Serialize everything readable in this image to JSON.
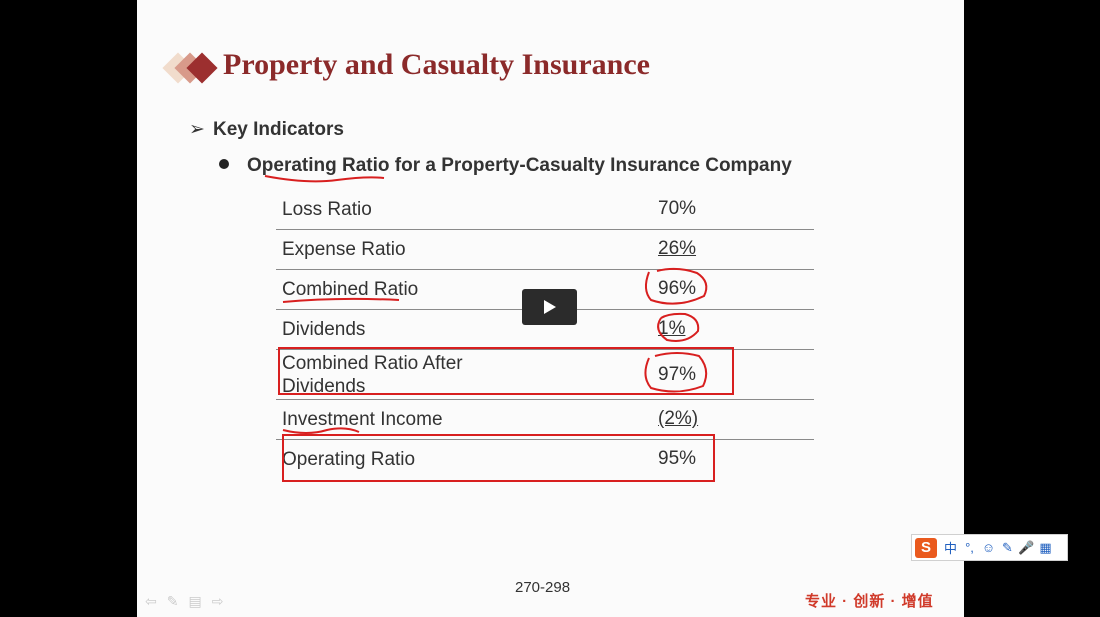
{
  "slide": {
    "title": "Property and Casualty Insurance",
    "bullet_l1": "Key Indicators",
    "bullet_l2": "Operating Ratio for a Property-Casualty Insurance Company",
    "arrow_glyph": "➢",
    "rows": [
      {
        "label": "Loss Ratio",
        "value": "70%"
      },
      {
        "label": "Expense Ratio",
        "value": "26%"
      },
      {
        "label": "Combined Ratio",
        "value": "96%"
      },
      {
        "label": "Dividends",
        "value": "1%"
      },
      {
        "label": "Combined Ratio After Dividends",
        "value": "97%"
      },
      {
        "label": "Investment Income",
        "value": "(2%)"
      },
      {
        "label": "Operating Ratio",
        "value": "95%"
      }
    ],
    "page_number": "270-298",
    "motto": "专业 · 创新 · 增值"
  },
  "ime_toolbar": {
    "logo": "S",
    "lang": "中",
    "punct": "°,",
    "emoji": "☺",
    "skin": "✎",
    "voice": "🎤",
    "grid": "▦"
  },
  "colors": {
    "title": "#8b2a2a",
    "annotation_red": "#d81f1f",
    "motto": "#d03a2a",
    "slide_bg": "#fbfbfb"
  }
}
